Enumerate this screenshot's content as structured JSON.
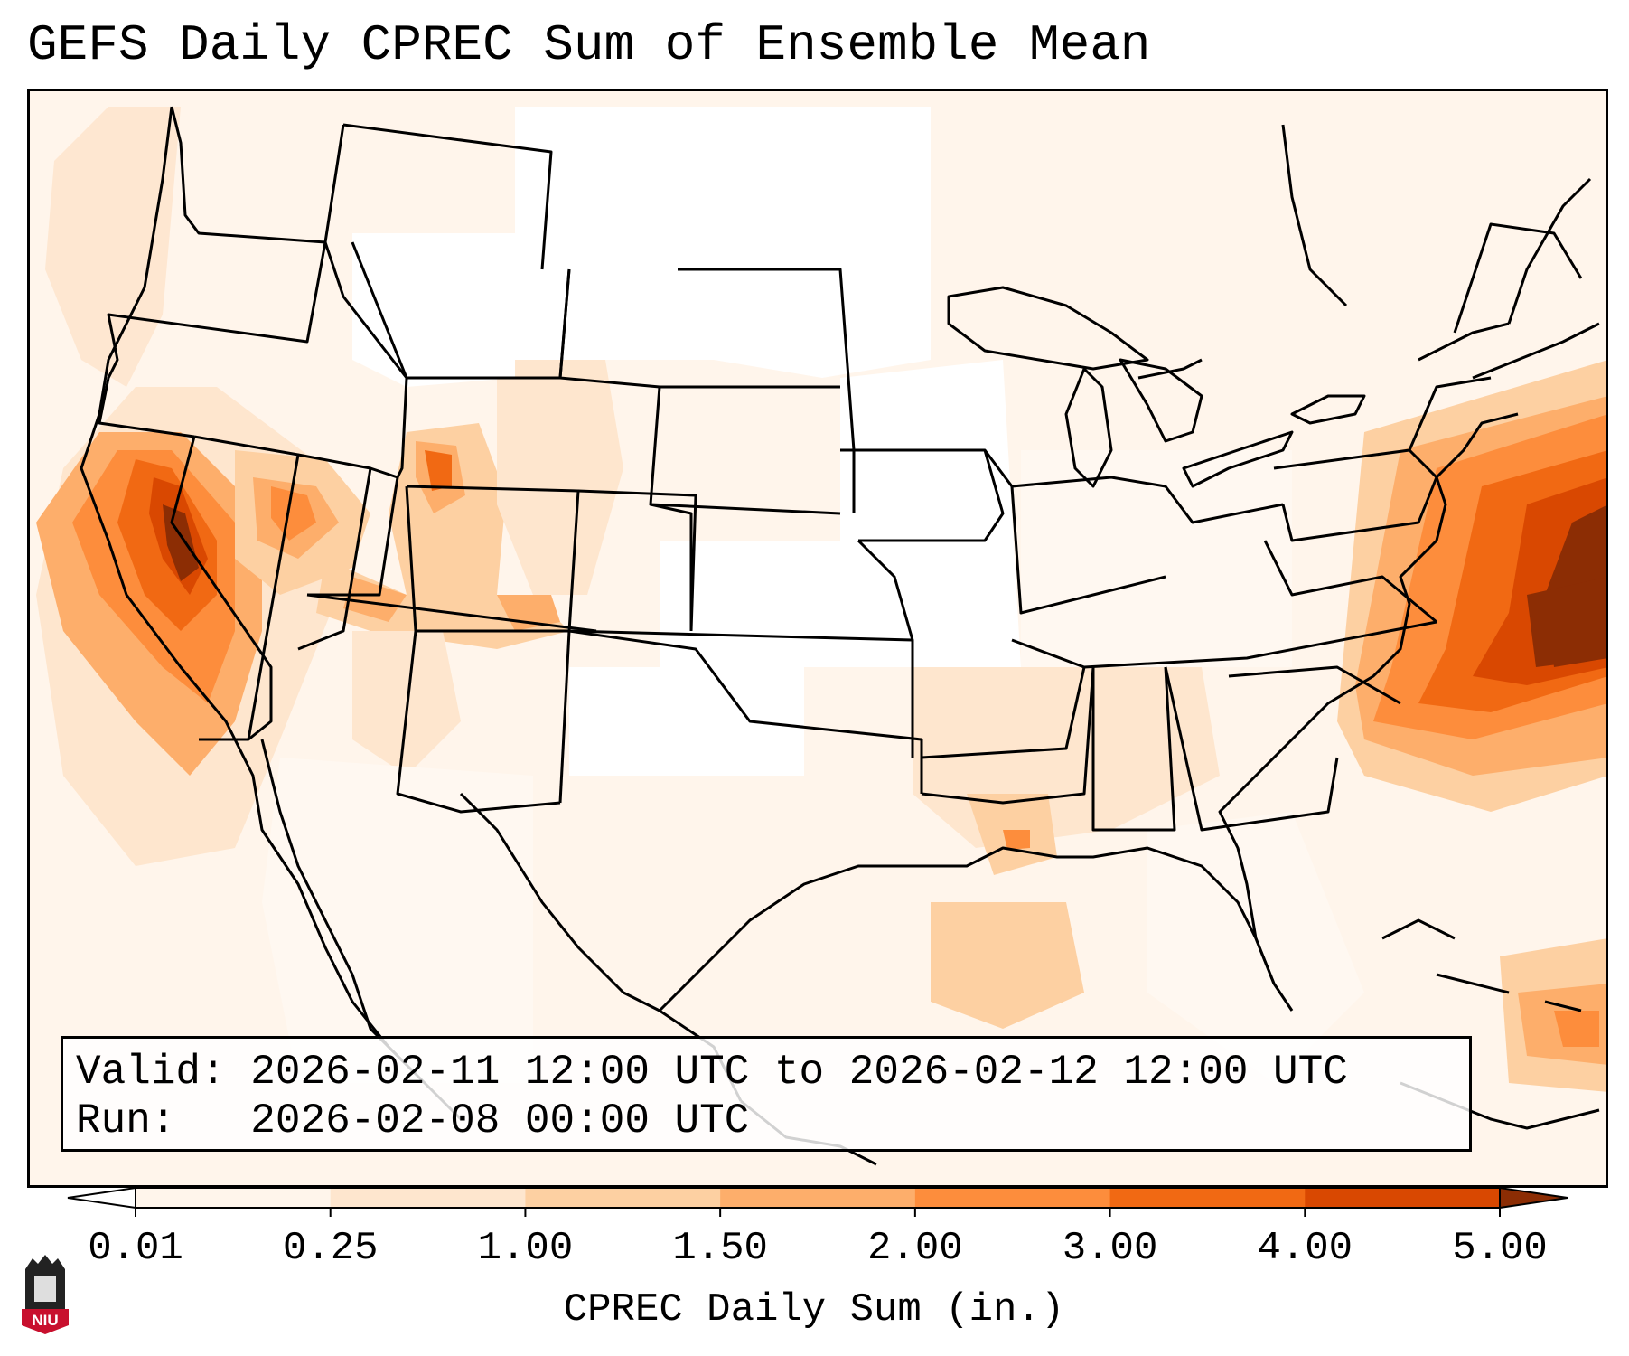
{
  "title": "GEFS Daily CPREC Sum of Ensemble Mean",
  "info": {
    "valid_label": "Valid:",
    "valid_value": "2026-02-11 12:00 UTC to 2026-02-12 12:00 UTC",
    "run_label": "Run:",
    "run_value": "2026-02-08 00:00 UTC"
  },
  "colorbar": {
    "label": "CPREC Daily Sum (in.)",
    "ticks": [
      "0.01",
      "0.25",
      "1.00",
      "1.50",
      "2.00",
      "3.00",
      "4.00",
      "5.00"
    ],
    "colors": [
      "#fff5eb",
      "#fee6ce",
      "#fdd0a2",
      "#fdae6b",
      "#fd8d3c",
      "#f16913",
      "#d94801",
      "#8c2d04"
    ]
  },
  "logo": {
    "text": "NIU",
    "accent": "#c8102e"
  }
}
